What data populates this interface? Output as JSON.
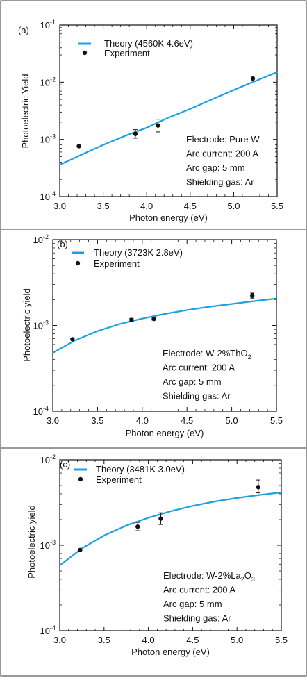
{
  "chart_data": [
    {
      "type": "line",
      "panel_label": "(a)",
      "xlabel": "Photon energy (eV)",
      "ylabel": "Photoelectric Yield",
      "y_scale": "log",
      "xlim": [
        3.0,
        5.5
      ],
      "ylim": [
        0.0001,
        0.1
      ],
      "x_ticks": [
        "3.0",
        "3.5",
        "4.0",
        "4.5",
        "5.0",
        "5.5"
      ],
      "y_ticks": [
        {
          "base": "10",
          "exp": "-1",
          "value": 0.1
        },
        {
          "base": "10",
          "exp": "-2",
          "value": 0.01
        },
        {
          "base": "10",
          "exp": "-3",
          "value": 0.001
        },
        {
          "base": "10",
          "exp": "-4",
          "value": 0.0001
        }
      ],
      "legend": {
        "theory": "Theory (4560K 4.6eV)",
        "experiment": "Experiment"
      },
      "series": [
        {
          "name": "Theory (4560K 4.6eV)",
          "kind": "line",
          "color": "#1ba1e2",
          "x": [
            3.0,
            3.25,
            3.5,
            3.75,
            4.0,
            4.25,
            4.5,
            4.75,
            5.0,
            5.25,
            5.5
          ],
          "y": [
            0.00036,
            0.00054,
            0.0008,
            0.00115,
            0.0016,
            0.0024,
            0.0034,
            0.005,
            0.0073,
            0.0105,
            0.015
          ]
        },
        {
          "name": "Experiment",
          "kind": "points",
          "color": "#111111",
          "x": [
            3.22,
            3.87,
            4.13,
            5.22
          ],
          "y": [
            0.00076,
            0.00125,
            0.00175,
            0.0116
          ],
          "err_low": [
            0.00076,
            0.00105,
            0.00135,
            0.0116
          ],
          "err_high": [
            0.00076,
            0.00148,
            0.00225,
            0.0116
          ]
        }
      ],
      "annotation": [
        {
          "text": "Electrode: Pure W"
        },
        {
          "text": "Arc current: 200 A"
        },
        {
          "text": "Arc gap: 5 mm"
        },
        {
          "text": "Shielding gas: Ar"
        }
      ]
    },
    {
      "type": "line",
      "panel_label": "(b)",
      "xlabel": "Photon energy (eV)",
      "ylabel": "Photoelectric yield",
      "y_scale": "log",
      "xlim": [
        3.0,
        5.5
      ],
      "ylim": [
        0.0001,
        0.01
      ],
      "x_ticks": [
        "3.0",
        "3.5",
        "4.0",
        "4.5",
        "5.0",
        "5.5"
      ],
      "y_ticks": [
        {
          "base": "10",
          "exp": "-2",
          "value": 0.01
        },
        {
          "base": "10",
          "exp": "-3",
          "value": 0.001
        },
        {
          "base": "10",
          "exp": "-4",
          "value": 0.0001
        }
      ],
      "legend": {
        "theory": "Theory (3723K 2.8eV)",
        "experiment": "Experiment"
      },
      "series": [
        {
          "name": "Theory (3723K 2.8eV)",
          "kind": "line",
          "color": "#1ba1e2",
          "x": [
            3.0,
            3.25,
            3.5,
            3.75,
            4.0,
            4.25,
            4.5,
            4.75,
            5.0,
            5.25,
            5.5
          ],
          "y": [
            0.00048,
            0.00067,
            0.00086,
            0.00104,
            0.0012,
            0.00136,
            0.00151,
            0.00165,
            0.00178,
            0.00192,
            0.00206
          ]
        },
        {
          "name": "Experiment",
          "kind": "points",
          "color": "#111111",
          "x": [
            3.22,
            3.88,
            4.13,
            5.23
          ],
          "y": [
            0.00069,
            0.00116,
            0.00119,
            0.00223
          ],
          "err_low": [
            0.00069,
            0.00111,
            0.00115,
            0.00208
          ],
          "err_high": [
            0.00069,
            0.00121,
            0.00123,
            0.00238
          ]
        }
      ],
      "annotation": [
        {
          "text": "Electrode: W-2%ThO",
          "sub": "2"
        },
        {
          "text": "Arc current: 200 A"
        },
        {
          "text": "Arc gap: 5 mm"
        },
        {
          "text": "Shielding gas: Ar"
        }
      ]
    },
    {
      "type": "line",
      "panel_label": "(c)",
      "xlabel": "Photon energy (eV)",
      "ylabel": "Photoelectric yield",
      "y_scale": "log",
      "xlim": [
        3.0,
        5.5
      ],
      "ylim": [
        0.0001,
        0.01
      ],
      "x_ticks": [
        "3.0",
        "3.5",
        "4.0",
        "4.5",
        "5.0",
        "5.5"
      ],
      "y_ticks": [
        {
          "base": "10",
          "exp": "-2",
          "value": 0.01
        },
        {
          "base": "10",
          "exp": "-3",
          "value": 0.001
        },
        {
          "base": "10",
          "exp": "-4",
          "value": 0.0001
        }
      ],
      "legend": {
        "theory": "Theory (3481K 3.0eV)",
        "experiment": "Experiment"
      },
      "series": [
        {
          "name": "Theory (3481K 3.0eV)",
          "kind": "line",
          "color": "#1ba1e2",
          "x": [
            3.0,
            3.25,
            3.5,
            3.75,
            4.0,
            4.25,
            4.5,
            4.75,
            5.0,
            5.25,
            5.5
          ],
          "y": [
            0.00058,
            0.00092,
            0.0013,
            0.0017,
            0.0021,
            0.0025,
            0.00289,
            0.00325,
            0.00358,
            0.00388,
            0.00415
          ]
        },
        {
          "name": "Experiment",
          "kind": "points",
          "color": "#111111",
          "x": [
            3.23,
            3.88,
            4.14,
            5.24
          ],
          "y": [
            0.00088,
            0.00165,
            0.00205,
            0.0048
          ],
          "err_low": [
            0.00088,
            0.00148,
            0.00175,
            0.0041
          ],
          "err_high": [
            0.00088,
            0.00185,
            0.0024,
            0.0058
          ]
        }
      ],
      "annotation": [
        {
          "text": "Electrode: W-2%La",
          "sub": "2",
          "text2": "O",
          "sub2": "3"
        },
        {
          "text": "Arc current: 200 A"
        },
        {
          "text": "Arc gap: 5 mm"
        },
        {
          "text": "Shielding gas: Ar"
        }
      ]
    }
  ]
}
